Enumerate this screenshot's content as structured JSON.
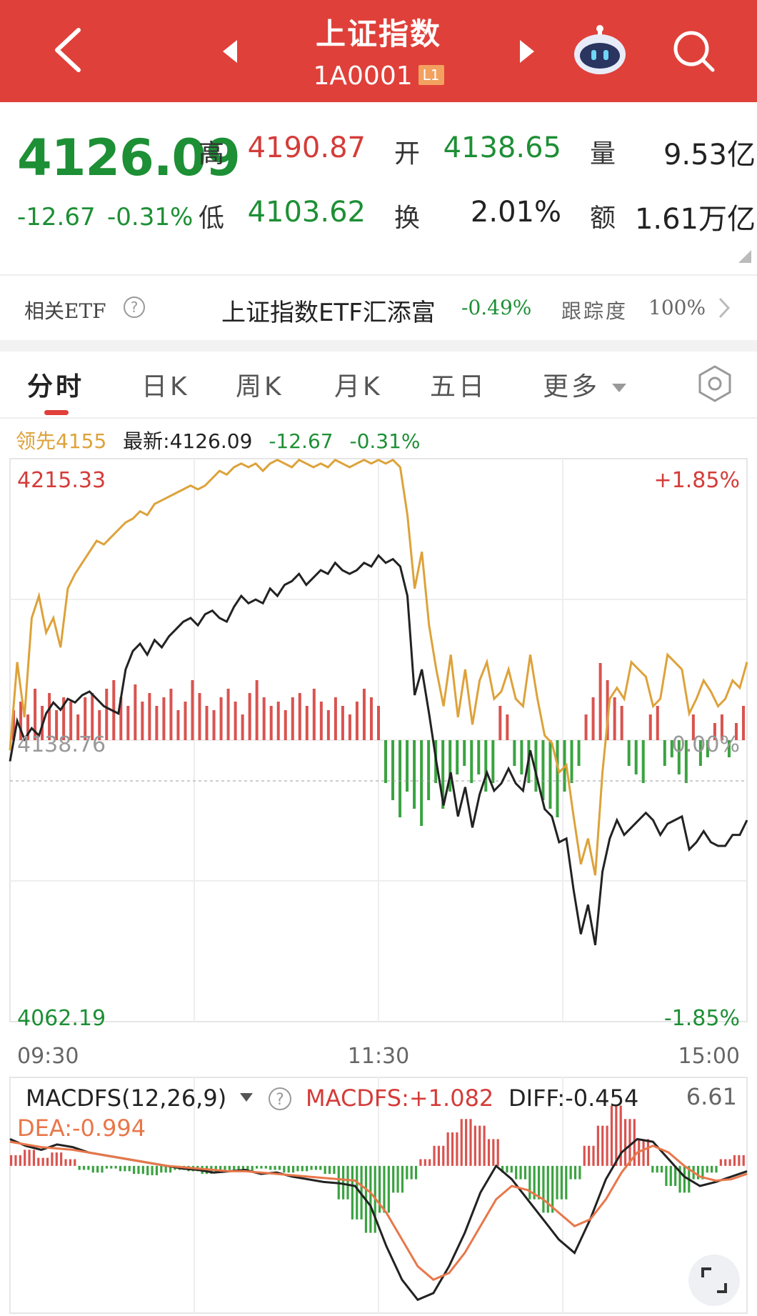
{
  "header": {
    "title": "上证指数",
    "code": "1A0001",
    "badge": "L1"
  },
  "quote": {
    "price": "4126.09",
    "change": "-12.67",
    "change_pct": "-0.31%",
    "high_label": "高",
    "high": "4190.87",
    "low_label": "低",
    "low": "4103.62",
    "open_label": "开",
    "open": "4138.65",
    "turnover_label": "换",
    "turnover": "2.01%",
    "volume_label": "量",
    "volume": "9.53亿",
    "amount_label": "额",
    "amount": "1.61万亿"
  },
  "etf": {
    "label": "相关ETF",
    "name": "上证指数ETF汇添富",
    "change": "-0.49%",
    "track_label": "跟踪度",
    "track_value": "100%"
  },
  "tabs": [
    {
      "label": "分时",
      "active": true
    },
    {
      "label": "日K"
    },
    {
      "label": "周K"
    },
    {
      "label": "月K"
    },
    {
      "label": "五日"
    },
    {
      "label": "更多"
    }
  ],
  "info": {
    "leader": "领先4155",
    "latest": "最新:4126.09",
    "change": "-12.67",
    "change_pct": "-0.31%"
  },
  "chart_data": [
    {
      "type": "line",
      "ylim": [
        4062.19,
        4215.33
      ],
      "y_top_label": "4215.33",
      "y_bottom_label": "4062.19",
      "y_top_pct": "+1.85%",
      "y_bottom_pct": "-1.85%",
      "baseline_label": "4138.76",
      "baseline_pct": "0.00%",
      "baseline_value": 4138.76,
      "x_ticks": [
        "09:30",
        "11:30",
        "15:00"
      ],
      "series": [
        {
          "color": "#222222",
          "values": [
            4133,
            4144,
            4139,
            4142,
            4140,
            4146,
            4149,
            4147,
            4150,
            4149,
            4151,
            4152,
            4150,
            4148,
            4147,
            4146,
            4158,
            4163,
            4165,
            4162,
            4166,
            4164,
            4167,
            4169,
            4171,
            4172,
            4170,
            4173,
            4174,
            4172,
            4171,
            4175,
            4178,
            4176,
            4177,
            4176,
            4180,
            4178,
            4181,
            4182,
            4184,
            4181,
            4183,
            4185,
            4184,
            4187,
            4185,
            4184,
            4185,
            4187,
            4186,
            4189,
            4187,
            4188,
            4186,
            4178,
            4151,
            4158,
            4146,
            4133,
            4121,
            4130,
            4118,
            4126,
            4115,
            4124,
            4130,
            4125,
            4127,
            4131,
            4127,
            4125,
            4136,
            4128,
            4120,
            4118,
            4111,
            4112,
            4098,
            4086,
            4094,
            4083,
            4103,
            4112,
            4117,
            4113,
            4115,
            4117,
            4119,
            4117,
            4113,
            4116,
            4117,
            4118,
            4109,
            4111,
            4114,
            4111,
            4110,
            4110,
            4113,
            4113,
            4117
          ]
        },
        {
          "color": "#dda23a",
          "values": [
            4136,
            4160,
            4145,
            4172,
            4178,
            4168,
            4172,
            4164,
            4180,
            4184,
            4187,
            4190,
            4193,
            4192,
            4194,
            4196,
            4198,
            4199,
            4201,
            4200,
            4203,
            4204,
            4205,
            4206,
            4207,
            4208,
            4207,
            4208,
            4210,
            4212,
            4211,
            4213,
            4214,
            4213,
            4214,
            4212,
            4214,
            4215,
            4214,
            4213,
            4215,
            4214,
            4213,
            4214,
            4213,
            4215,
            4214,
            4213,
            4214,
            4215,
            4214,
            4215,
            4214,
            4215,
            4213,
            4200,
            4180,
            4190,
            4170,
            4158,
            4148,
            4162,
            4145,
            4158,
            4143,
            4155,
            4160,
            4150,
            4152,
            4158,
            4150,
            4148,
            4162,
            4150,
            4140,
            4138,
            4130,
            4132,
            4118,
            4105,
            4112,
            4102,
            4130,
            4150,
            4153,
            4150,
            4160,
            4158,
            4156,
            4148,
            4150,
            4162,
            4160,
            4158,
            4146,
            4150,
            4155,
            4152,
            4148,
            4150,
            4155,
            4153,
            4160
          ]
        }
      ],
      "volume_bars": [
        0.35,
        0.45,
        0.3,
        0.6,
        0.4,
        0.55,
        0.35,
        0.5,
        0.45,
        0.3,
        0.5,
        0.55,
        0.35,
        0.6,
        0.7,
        0.5,
        0.4,
        0.65,
        0.45,
        0.55,
        0.4,
        0.5,
        0.6,
        0.35,
        0.45,
        0.7,
        0.55,
        0.4,
        0.35,
        0.5,
        0.6,
        0.45,
        0.3,
        0.55,
        0.7,
        0.5,
        0.4,
        0.45,
        0.35,
        0.5,
        0.55,
        0.4,
        0.6,
        0.45,
        0.35,
        0.5,
        0.4,
        0.3,
        0.45,
        0.6,
        0.5,
        0.4,
        -0.5,
        -0.7,
        -0.9,
        -0.6,
        -0.8,
        -1.0,
        -0.7,
        -0.5,
        -0.8,
        -0.6,
        -0.4,
        -0.3,
        -0.5,
        -0.4,
        -0.6,
        -0.5,
        0.4,
        0.3,
        -0.3,
        -0.4,
        -0.5,
        -0.6,
        -0.7,
        -0.8,
        -0.9,
        -0.6,
        -0.5,
        -0.3,
        0.3,
        0.5,
        0.9,
        0.7,
        0.5,
        0.4,
        -0.3,
        -0.4,
        -0.5,
        0.3,
        0.4,
        -0.3,
        -0.2,
        -0.4,
        -0.5,
        0.3,
        -0.3,
        -0.2,
        0.2,
        0.3,
        -0.2,
        0.2,
        0.4
      ]
    },
    {
      "type": "area",
      "title": "MACDFS(12,26,9)",
      "macd_label": "MACDFS:+1.082",
      "diff_label": "DIFF:-0.454",
      "dea_label": "DEA:-0.994",
      "max_label": "6.61",
      "series": [
        {
          "color": "#222222",
          "name": "DIFF",
          "values": [
            2.0,
            1.5,
            1.2,
            1.6,
            1.4,
            1.0,
            0.8,
            0.6,
            0.4,
            0.2,
            0.0,
            -0.2,
            -0.3,
            -0.5,
            -0.4,
            -0.3,
            -0.6,
            -0.5,
            -0.8,
            -1.0,
            -1.2,
            -1.3,
            -1.5,
            -3.0,
            -6.0,
            -8.5,
            -10.0,
            -9.5,
            -7.5,
            -5.0,
            -2.0,
            0.0,
            -1.0,
            -2.5,
            -4.0,
            -5.5,
            -6.5,
            -4.0,
            -1.0,
            1.0,
            2.0,
            1.8,
            0.5,
            -0.8,
            -1.5,
            -1.2,
            -0.8,
            -0.4
          ]
        },
        {
          "color": "#e8774a",
          "name": "DEA",
          "values": [
            1.8,
            1.6,
            1.4,
            1.3,
            1.2,
            1.0,
            0.8,
            0.6,
            0.4,
            0.2,
            0.0,
            -0.1,
            -0.2,
            -0.3,
            -0.4,
            -0.4,
            -0.5,
            -0.6,
            -0.7,
            -0.8,
            -0.9,
            -1.0,
            -1.1,
            -2.0,
            -3.5,
            -5.5,
            -7.5,
            -8.5,
            -8.0,
            -6.5,
            -4.5,
            -2.5,
            -1.5,
            -1.8,
            -2.5,
            -3.5,
            -4.5,
            -4.0,
            -2.5,
            -0.5,
            1.0,
            1.5,
            1.0,
            0.0,
            -0.8,
            -1.1,
            -1.0,
            -0.6
          ]
        }
      ],
      "histogram": [
        0.8,
        1.2,
        0.6,
        1.0,
        0.5,
        -0.3,
        -0.5,
        -0.2,
        -0.4,
        -0.6,
        -0.7,
        -0.5,
        -0.3,
        -0.4,
        -0.6,
        -0.5,
        -0.3,
        -0.4,
        -0.2,
        -0.3,
        -0.5,
        -0.4,
        -0.3,
        -0.6,
        -2.5,
        -4.0,
        -5.0,
        -3.5,
        -2.0,
        -1.0,
        0.5,
        1.5,
        2.5,
        3.5,
        3.0,
        2.0,
        -0.5,
        -1.0,
        -2.5,
        -3.5,
        -2.5,
        -1.0,
        1.5,
        3.0,
        4.5,
        3.5,
        2.0,
        -0.5,
        -1.5,
        -2.0,
        -1.0,
        -0.5,
        0.5,
        0.8
      ]
    }
  ]
}
